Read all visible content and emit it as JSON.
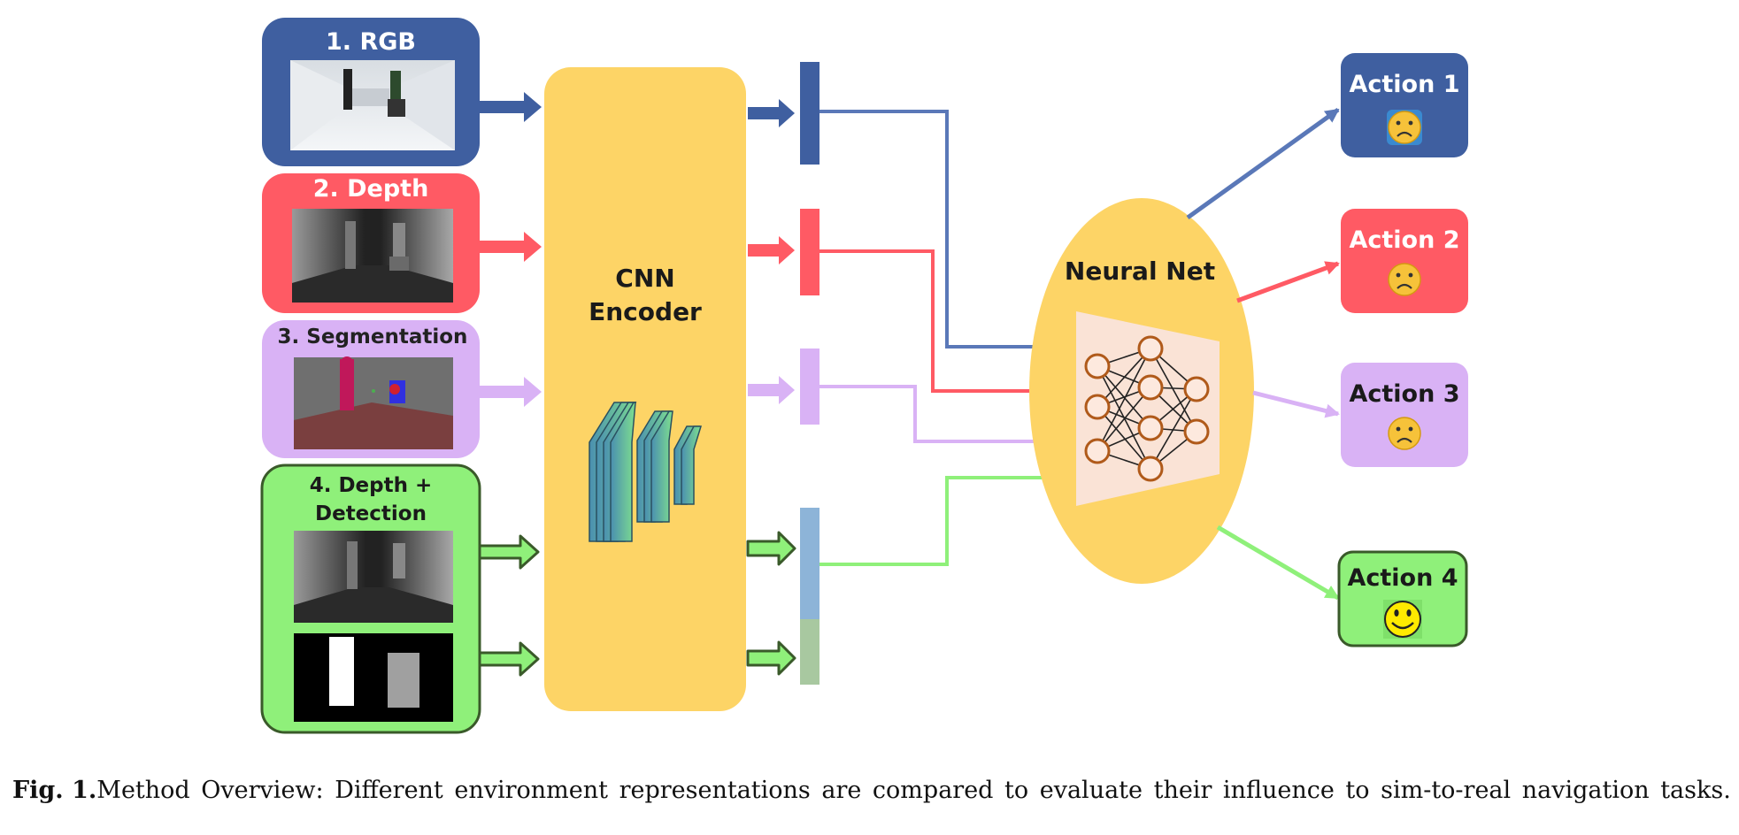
{
  "diagram": {
    "inputs": [
      {
        "label": "1. RGB"
      },
      {
        "label": "2. Depth"
      },
      {
        "label": "3. Segmentation"
      },
      {
        "label_line1": "4. Depth +",
        "label_line2": "Detection"
      }
    ],
    "encoder": {
      "line1": "CNN",
      "line2": "Encoder"
    },
    "network": {
      "label": "Neural Net"
    },
    "actions": [
      {
        "label": "Action 1",
        "face": "sad-face-icon"
      },
      {
        "label": "Action 2",
        "face": "sad-face-icon"
      },
      {
        "label": "Action 3",
        "face": "sad-face-icon"
      },
      {
        "label": "Action 4",
        "face": "happy-face-icon"
      }
    ],
    "colors": {
      "rgb": "#3f5fa0",
      "depth": "#ff5a64",
      "segmentation": "#d9b2f5",
      "detection": "#8ff07a",
      "detection_border": "#3a5a2a",
      "encoder": "#fdd466",
      "network_node": "#b05a1a"
    }
  },
  "caption": {
    "fig": "Fig. 1.",
    "text": "Method Overview: Different environment representations are compared to evaluate their influence to sim-to-real navigation tasks."
  }
}
